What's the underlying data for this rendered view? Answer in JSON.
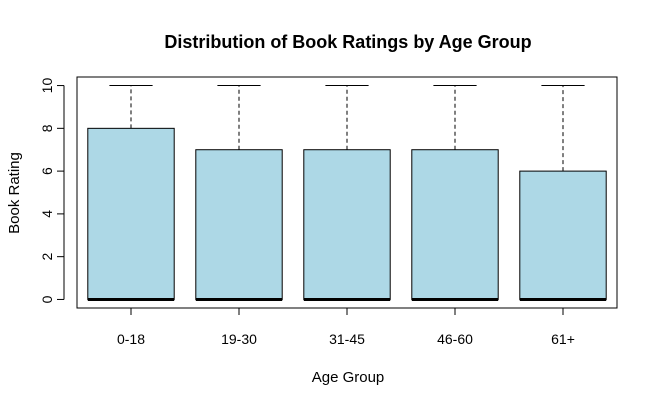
{
  "chart_data": {
    "type": "box",
    "title": "Distribution of Book Ratings by Age Group",
    "xlabel": "Age Group",
    "ylabel": "Book Rating",
    "categories": [
      "0-18",
      "19-30",
      "31-45",
      "46-60",
      "61+"
    ],
    "boxes": [
      {
        "min": 0,
        "q1": 0,
        "median": 0,
        "q3": 8,
        "max": 10
      },
      {
        "min": 0,
        "q1": 0,
        "median": 0,
        "q3": 7,
        "max": 10
      },
      {
        "min": 0,
        "q1": 0,
        "median": 0,
        "q3": 7,
        "max": 10
      },
      {
        "min": 0,
        "q1": 0,
        "median": 0,
        "q3": 7,
        "max": 10
      },
      {
        "min": 0,
        "q1": 0,
        "median": 0,
        "q3": 6,
        "max": 10
      }
    ],
    "yticks": [
      0,
      2,
      4,
      6,
      8,
      10
    ],
    "ylim": [
      -0.4,
      10.4
    ],
    "box_color": "#add8e6",
    "grid": false,
    "legend": "none"
  }
}
